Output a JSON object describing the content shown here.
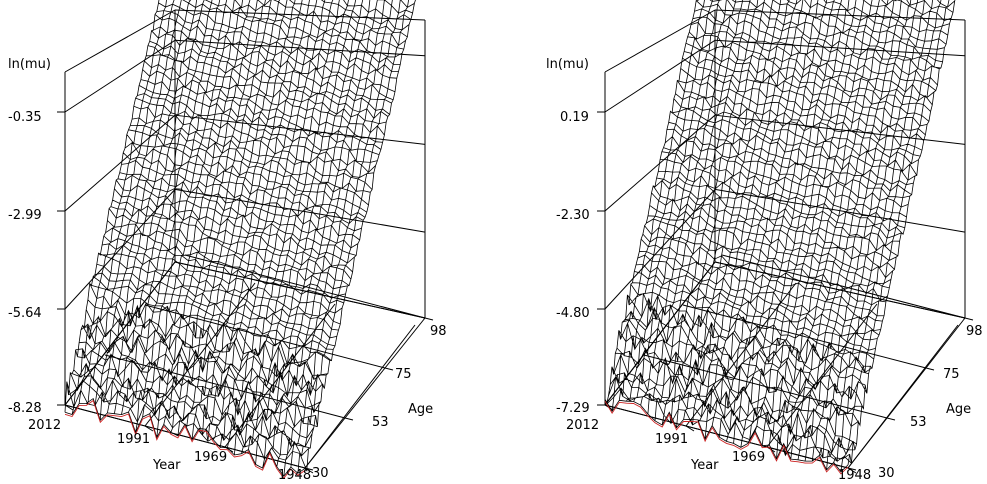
{
  "chart_data": [
    {
      "type": "surface3d",
      "zlabel": "ln(mu)",
      "xlabel": "Year",
      "ylabel": "Age",
      "ztick_labels": [
        "-0.35",
        "-2.99",
        "-5.64",
        "-8.28"
      ],
      "ztick_values": [
        -0.35,
        -2.99,
        -5.64,
        -8.28
      ],
      "xtick_labels": [
        "2012",
        "1991",
        "1969",
        "1948"
      ],
      "xtick_values": [
        2012,
        1991,
        1969,
        1948
      ],
      "ytick_labels": [
        "30",
        "53",
        "75",
        "98"
      ],
      "ytick_values": [
        30,
        53,
        75,
        98
      ],
      "zlim": [
        -8.28,
        0.1
      ],
      "xlim": [
        1948,
        2012
      ],
      "ylim": [
        30,
        98
      ],
      "surface": {
        "description_rows": "age",
        "ages": [
          30,
          53,
          75,
          98
        ],
        "years": [
          1948,
          1969,
          1991,
          2012
        ],
        "ln_mu": [
          [
            -8.0,
            -8.05,
            -8.1,
            -8.15
          ],
          [
            -5.6,
            -5.65,
            -5.7,
            -5.75
          ],
          [
            -2.9,
            -2.95,
            -3.0,
            -3.0
          ],
          [
            -0.2,
            -0.25,
            -0.3,
            -0.35
          ]
        ]
      },
      "grid": true,
      "mesh_color": "#000000",
      "highlight_color": "#cc2222"
    },
    {
      "type": "surface3d",
      "zlabel": "ln(mu)",
      "xlabel": "Year",
      "ylabel": "Age",
      "ztick_labels": [
        "0.19",
        "-2.30",
        "-4.80",
        "-7.29"
      ],
      "ztick_values": [
        0.19,
        -2.3,
        -4.8,
        -7.29
      ],
      "xtick_labels": [
        "2012",
        "1991",
        "1969",
        "1948"
      ],
      "xtick_values": [
        2012,
        1991,
        1969,
        1948
      ],
      "ytick_labels": [
        "30",
        "53",
        "75",
        "98"
      ],
      "ytick_values": [
        30,
        53,
        75,
        98
      ],
      "zlim": [
        -7.29,
        0.8
      ],
      "xlim": [
        1948,
        2012
      ],
      "ylim": [
        30,
        98
      ],
      "surface": {
        "description_rows": "age",
        "ages": [
          30,
          53,
          75,
          98
        ],
        "years": [
          1948,
          1969,
          1991,
          2012
        ],
        "ln_mu": [
          [
            -7.3,
            -7.35,
            -7.4,
            -7.45
          ],
          [
            -4.8,
            -4.85,
            -4.9,
            -4.95
          ],
          [
            -2.2,
            -2.25,
            -2.3,
            -2.3
          ],
          [
            0.3,
            0.25,
            0.2,
            0.19
          ]
        ]
      },
      "grid": true,
      "mesh_color": "#000000",
      "highlight_color": "#cc2222"
    }
  ]
}
